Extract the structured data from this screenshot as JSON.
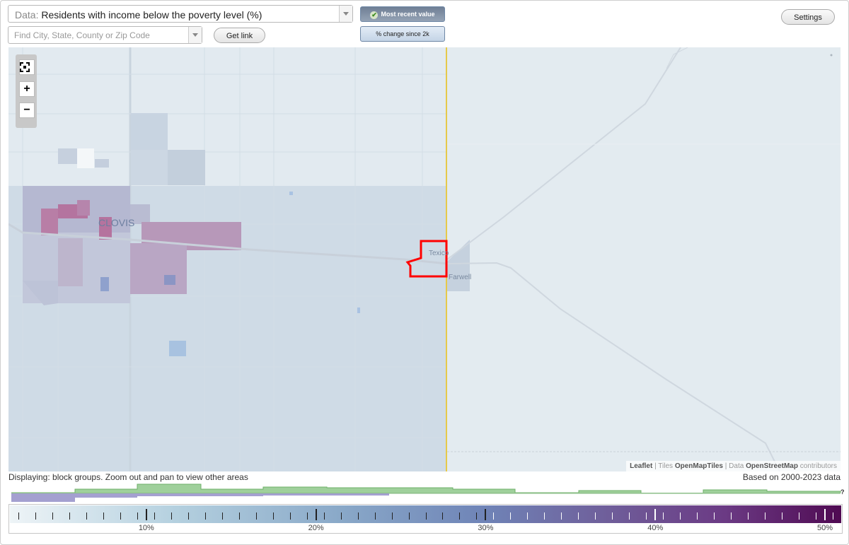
{
  "toolbar": {
    "data_label": "Data:",
    "data_value": "Residents with income below the poverty level (%)",
    "search_placeholder": "Find City, State, County or Zip Code",
    "get_link": "Get link",
    "mode_recent": "Most recent value",
    "mode_change": "% change since 2k",
    "settings": "Settings"
  },
  "map": {
    "zoom_fit_icon": "fullscreen-icon",
    "zoom_in": "+",
    "zoom_out": "−",
    "places": {
      "clovis": "CLOVIS",
      "texico": "Texico",
      "farwell": "Farwell"
    },
    "attribution": {
      "leaflet": "Leaflet",
      "sep1": " | Tiles ",
      "tiles": "OpenMapTiles",
      "sep2": " | Data ",
      "osm": "OpenStreetMap",
      "tail": " contributors"
    },
    "colors": {
      "outline": "#ff0000",
      "state_line": "#e6c94a"
    }
  },
  "footer": {
    "displaying": "Displaying: block groups. Zoom out and pan to view other areas",
    "based_on": "Based on 2000-2023 data",
    "unknown_marker": "?"
  },
  "legend": {
    "range": [
      2,
      51
    ],
    "tick_labels": [
      {
        "value": 10,
        "label": "10%"
      },
      {
        "value": 20,
        "label": "20%"
      },
      {
        "value": 30,
        "label": "30%"
      },
      {
        "value": 40,
        "label": "40%"
      },
      {
        "value": 50,
        "label": "50%"
      }
    ]
  }
}
